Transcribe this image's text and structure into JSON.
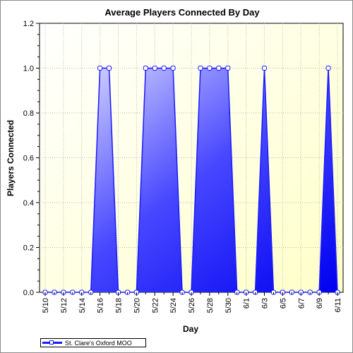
{
  "chart_data": {
    "type": "area",
    "title": "Average Players Connected By Day",
    "xlabel": "Day",
    "ylabel": "Players Connected",
    "x": [
      "5/10",
      "5/11",
      "5/12",
      "5/13",
      "5/14",
      "5/15",
      "5/16",
      "5/17",
      "5/18",
      "5/19",
      "5/20",
      "5/21",
      "5/22",
      "5/23",
      "5/24",
      "5/25",
      "5/26",
      "5/27",
      "5/28",
      "5/29",
      "5/30",
      "5/31",
      "6/1",
      "6/2",
      "6/3",
      "6/4",
      "6/5",
      "6/6",
      "6/7",
      "6/8",
      "6/9",
      "6/10",
      "6/11"
    ],
    "x_tick_labels": [
      "5/10",
      "5/12",
      "5/14",
      "5/16",
      "5/18",
      "5/20",
      "5/22",
      "5/24",
      "5/26",
      "5/28",
      "5/30",
      "6/1",
      "6/3",
      "6/5",
      "6/7",
      "6/9",
      "6/11"
    ],
    "ylim": [
      0,
      1.2
    ],
    "y_ticks": [
      "0.0",
      "0.2",
      "0.4",
      "0.6",
      "0.8",
      "1.0",
      "1.2"
    ],
    "grid": true,
    "legend_position": "bottom-left",
    "series": [
      {
        "name": "St. Clare's Oxford MOO",
        "color": "#1a1aff",
        "values": [
          0,
          0,
          0,
          0,
          0,
          0,
          1,
          1,
          0,
          0,
          0,
          1,
          1,
          1,
          1,
          0,
          0,
          1,
          1,
          1,
          1,
          0,
          0,
          0,
          1,
          0,
          0,
          0,
          0,
          0,
          0,
          1,
          0
        ]
      }
    ]
  }
}
